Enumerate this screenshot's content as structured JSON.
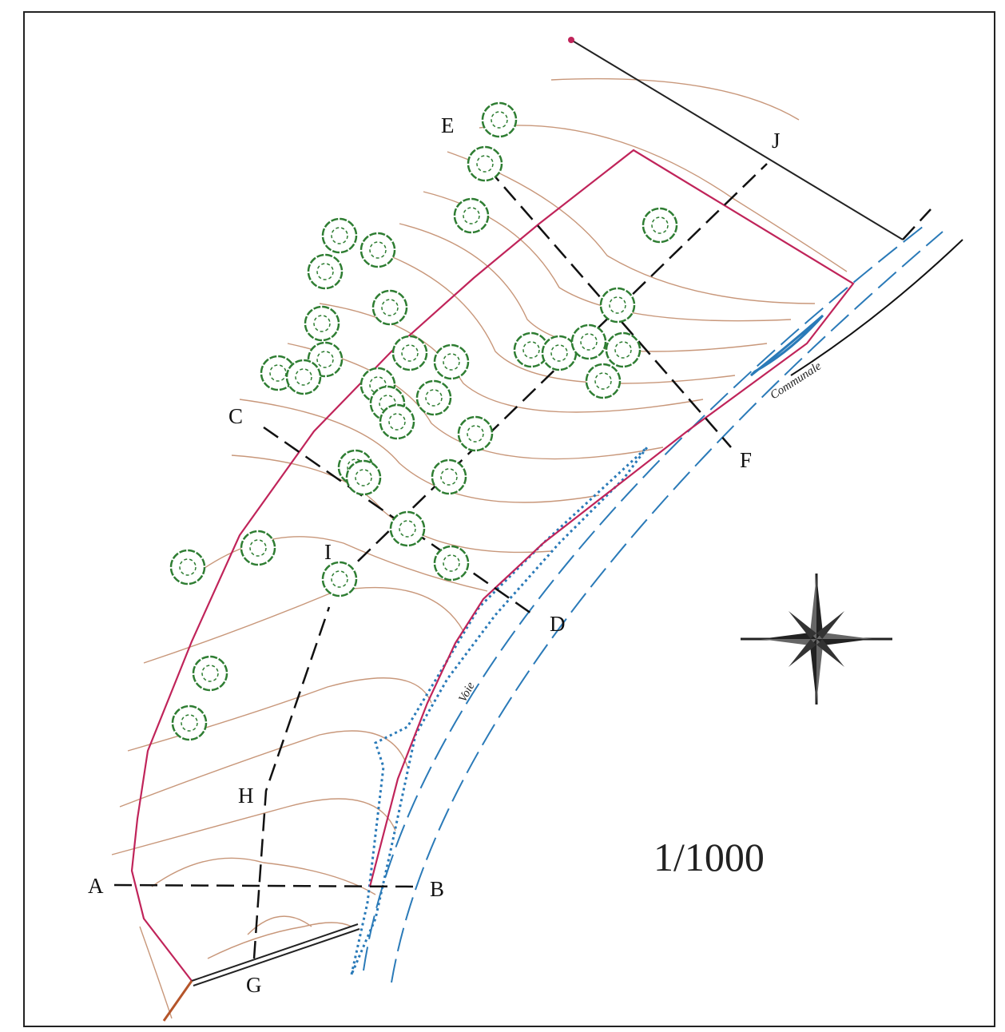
{
  "scale": "1/1000",
  "road": {
    "name_left": "Voie",
    "name_right": "Communale"
  },
  "section_points": [
    "A",
    "B",
    "C",
    "D",
    "E",
    "F",
    "G",
    "H",
    "I",
    "J"
  ]
}
